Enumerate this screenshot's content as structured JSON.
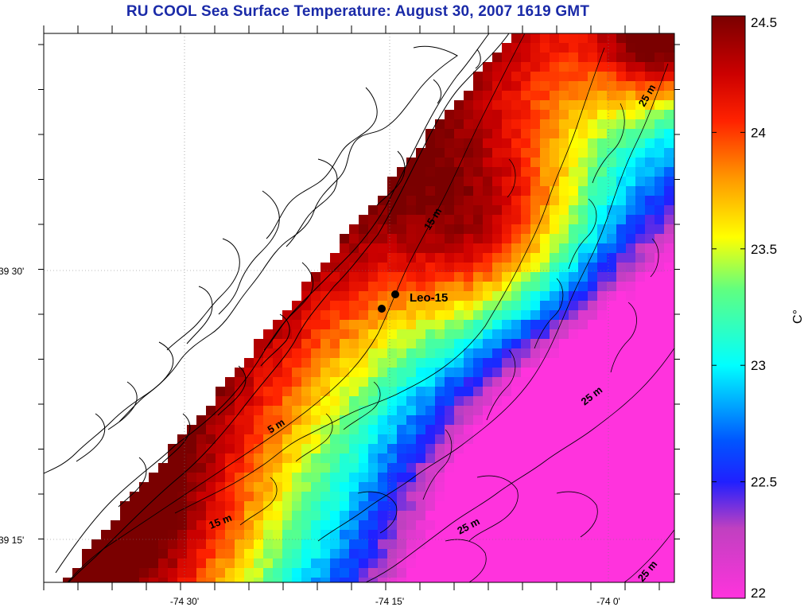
{
  "title": "RU COOL  Sea Surface Temperature:  August 30, 2007 1619 GMT",
  "map": {
    "lat_ticks": [
      {
        "label": "39 30'",
        "value": 39.5
      },
      {
        "label": "39 15'",
        "value": 39.25
      }
    ],
    "lon_ticks": [
      {
        "label": "-74 30'",
        "value": -74.5
      },
      {
        "label": "-74 15'",
        "value": -74.25
      },
      {
        "label": "-74 0'",
        "value": -74.0
      }
    ],
    "contour_labels": [
      "5 m",
      "15 m",
      "15 m",
      "25 m",
      "25 m",
      "25 m",
      "25 m"
    ],
    "station": {
      "label": "Leo-15"
    }
  },
  "colorbar": {
    "label": "C°",
    "min": 22,
    "max": 24.5,
    "ticks": [
      "24.5",
      "24",
      "23.5",
      "23",
      "22.5",
      "22"
    ],
    "colors": {
      "cold": "#ff33cc",
      "cool": "#0000ff",
      "mid": "#00ffff",
      "warm": "#ffff00",
      "hot": "#ff0000",
      "max": "#800000"
    }
  }
}
